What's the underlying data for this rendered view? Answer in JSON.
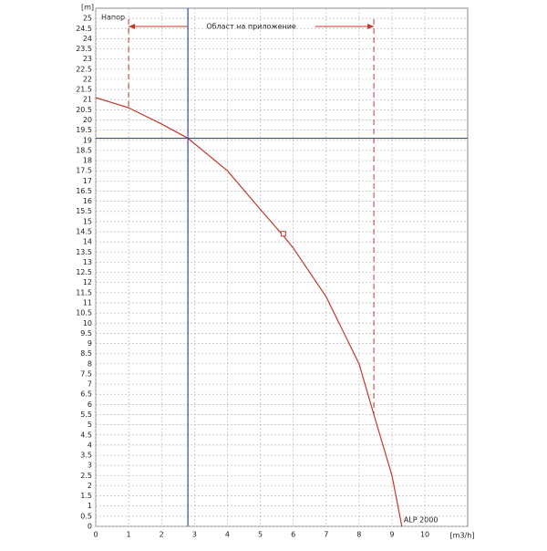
{
  "chart_data": {
    "type": "line",
    "x_label": "[m3/h]",
    "y_label": "[m]",
    "corner_label": "Напор",
    "xlim": [
      0,
      11.3
    ],
    "ylim": [
      0,
      25.5
    ],
    "xticks": [
      0,
      1,
      2,
      3,
      4,
      5,
      6,
      7,
      8,
      9,
      10
    ],
    "yticks": [
      0,
      0.5,
      1,
      1.5,
      2,
      2.5,
      3,
      3.5,
      4,
      4.5,
      5,
      5.5,
      6,
      6.5,
      7,
      7.5,
      8,
      8.5,
      9,
      9.5,
      10,
      10.5,
      11,
      11.5,
      12,
      12.5,
      13,
      13.5,
      14,
      14.5,
      15,
      15.5,
      16,
      16.5,
      17,
      17.5,
      18,
      18.5,
      19,
      19.5,
      20,
      20.5,
      21,
      21.5,
      22,
      22.5,
      23,
      23.5,
      24,
      24.5,
      25
    ],
    "grid": true,
    "series": [
      {
        "name": "ALP 2000",
        "color": "#c0392b",
        "x": [
          0,
          1,
          2,
          2.8,
          4,
          5,
          5.7,
          6,
          7,
          8,
          8.45,
          9,
          9.3
        ],
        "values": [
          21.1,
          20.6,
          19.8,
          19.1,
          17.5,
          15.6,
          14.3,
          13.7,
          11.3,
          8,
          5.5,
          2.5,
          0
        ]
      }
    ],
    "marker": {
      "x": 5.7,
      "y": 14.4
    },
    "operating_point": {
      "x": 2.8,
      "y": 19.1,
      "color": "#3949ab"
    },
    "application_range": {
      "label": "Област на приложение",
      "from": 1,
      "to": 8.45,
      "y": 24.6
    }
  }
}
